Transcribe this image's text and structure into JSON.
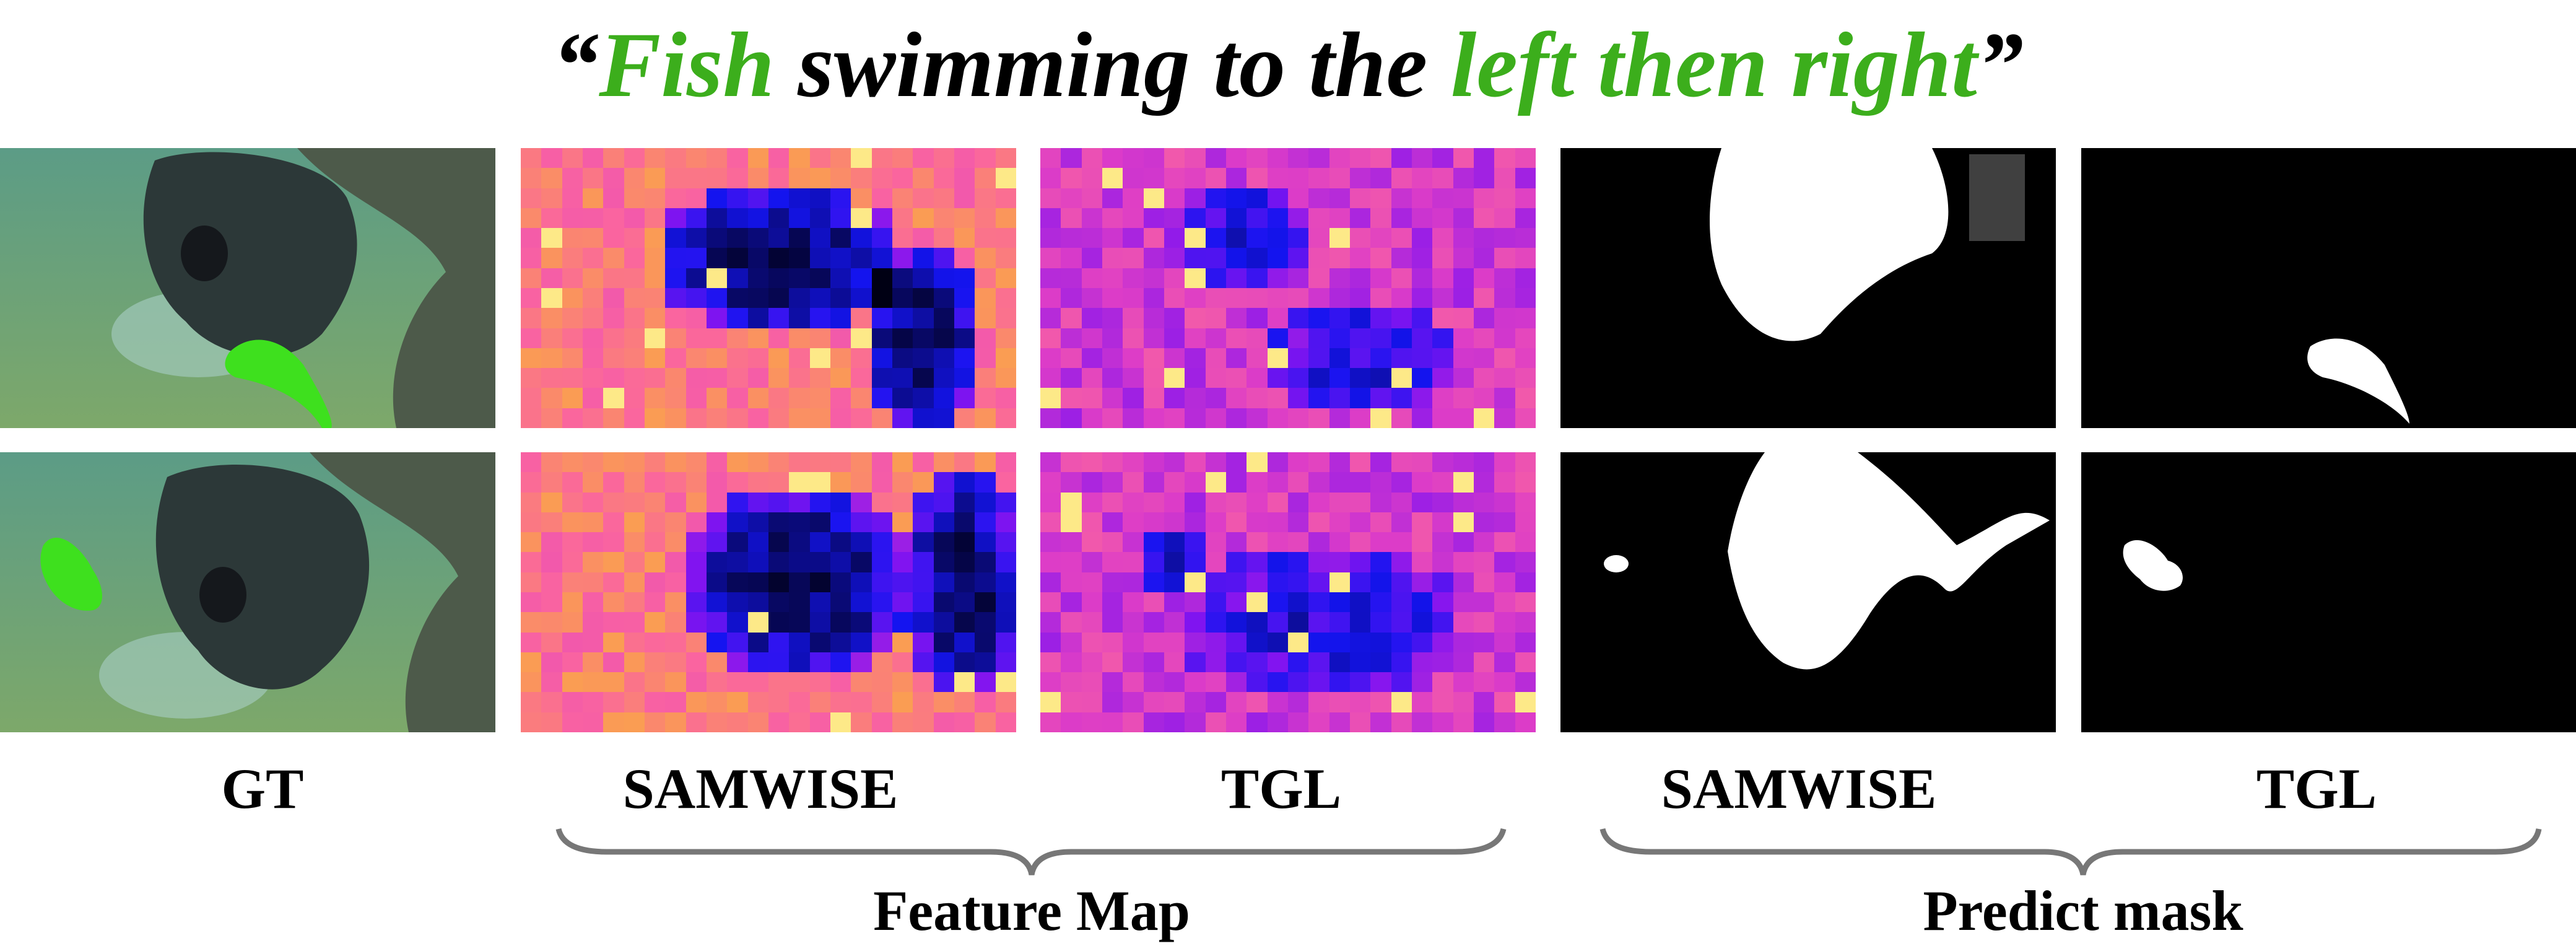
{
  "title": {
    "open_quote": "“",
    "w1": "Fish",
    "w2": " swimming to the ",
    "w3": "left then right",
    "close_quote": "”",
    "highlight_color": "#3cae1c"
  },
  "column_labels": [
    "GT",
    "SAMWISE",
    "TGL",
    "SAMWISE",
    "TGL"
  ],
  "group_labels": [
    "Feature Map",
    "Predict mask"
  ],
  "colors": {
    "gt_fish": "#3ee01e",
    "mask_fg": "#ffffff",
    "mask_bg": "#000000"
  }
}
